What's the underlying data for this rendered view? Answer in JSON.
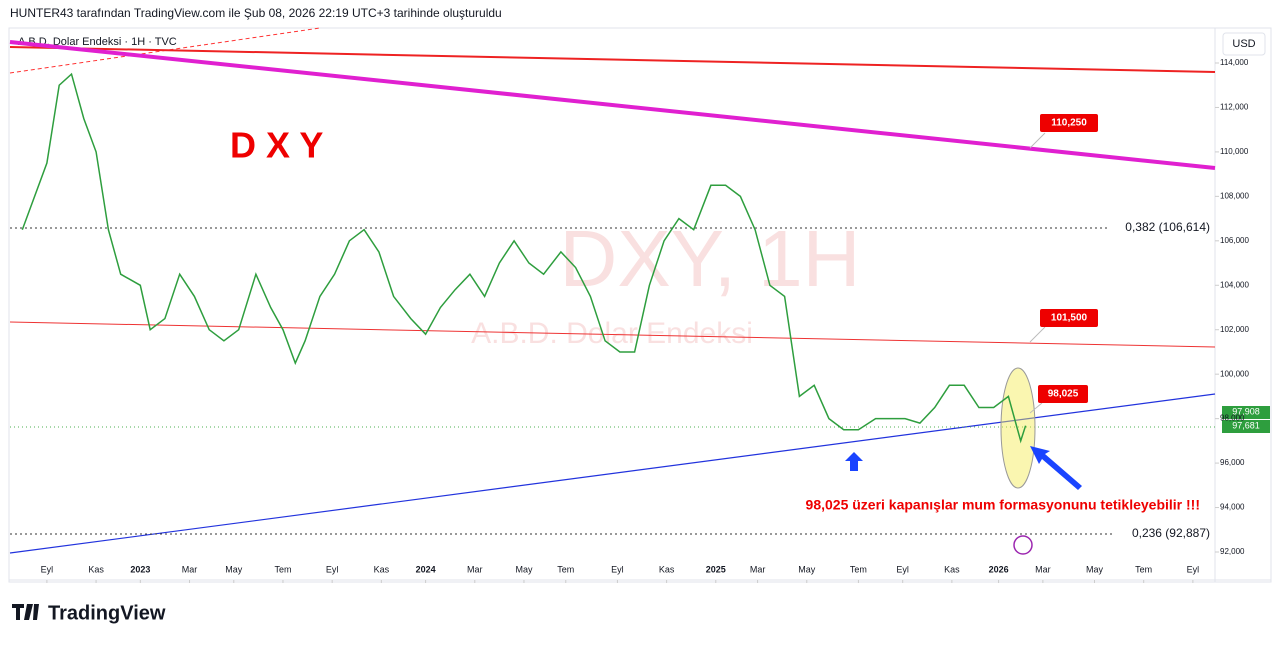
{
  "header": "HUNTER43 tarafından TradingView.com ile Şub 08, 2026 22:19 UTC+3 tarihinde oluşturuldu",
  "chart_data": {
    "type": "line",
    "title": "A.B.D. Dolar Endeksi · 1H · TVC",
    "currency": "USD",
    "annotation_title": "D X Y",
    "watermark": "DXY, 1H",
    "watermark_sub": "A.B.D. Dolar Endeksi",
    "price_labels": [
      "110,250",
      "101,500",
      "98,025"
    ],
    "fib_labels": [
      "0,382 (106,614)",
      "0,236 (92,887)"
    ],
    "last_prices": [
      "97,908",
      "97,681"
    ],
    "note": "98,025 üzeri kapanışlar mum formasyonunu tetikleyebilir !!!",
    "xlim": [
      -1.5,
      47.5
    ],
    "ylim": [
      90.74,
      115.26
    ],
    "xticks": [
      {
        "value": 0,
        "label": "Eyl"
      },
      {
        "value": 2,
        "label": "Kas"
      },
      {
        "value": 3.8,
        "label": "2023"
      },
      {
        "value": 5.8,
        "label": "Mar"
      },
      {
        "value": 7.6,
        "label": "May"
      },
      {
        "value": 9.6,
        "label": "Tem"
      },
      {
        "value": 11.6,
        "label": "Eyl"
      },
      {
        "value": 13.6,
        "label": "Kas"
      },
      {
        "value": 15.4,
        "label": "2024"
      },
      {
        "value": 17.4,
        "label": "Mar"
      },
      {
        "value": 19.4,
        "label": "May"
      },
      {
        "value": 21.1,
        "label": "Tem"
      },
      {
        "value": 23.2,
        "label": "Eyl"
      },
      {
        "value": 25.2,
        "label": "Kas"
      },
      {
        "value": 27.2,
        "label": "2025"
      },
      {
        "value": 28.9,
        "label": "Mar"
      },
      {
        "value": 30.9,
        "label": "May"
      },
      {
        "value": 33,
        "label": "Tem"
      },
      {
        "value": 34.8,
        "label": "Eyl"
      },
      {
        "value": 36.8,
        "label": "Kas"
      },
      {
        "value": 38.7,
        "label": "2026"
      },
      {
        "value": 40.5,
        "label": "Mar"
      },
      {
        "value": 42.6,
        "label": "May"
      },
      {
        "value": 44.6,
        "label": "Tem"
      },
      {
        "value": 46.6,
        "label": "Eyl"
      }
    ],
    "yticks": [
      {
        "value": 92,
        "label": "92,000"
      },
      {
        "value": 94,
        "label": "94,000"
      },
      {
        "value": 96,
        "label": "96,000"
      },
      {
        "value": 98,
        "label": "98,000"
      },
      {
        "value": 100,
        "label": "100,000"
      },
      {
        "value": 102,
        "label": "102,000"
      },
      {
        "value": 104,
        "label": "104,000"
      },
      {
        "value": 106,
        "label": "106,000"
      },
      {
        "value": 108,
        "label": "108,000"
      },
      {
        "value": 110,
        "label": "110,000"
      },
      {
        "value": 112,
        "label": "112,000"
      },
      {
        "value": 114,
        "label": "114,000"
      }
    ],
    "x": [
      -1.0,
      0,
      0.5,
      1.0,
      1.5,
      2.0,
      2.5,
      3.0,
      3.8,
      4.2,
      4.8,
      5.4,
      6.0,
      6.6,
      7.2,
      7.8,
      8.5,
      9.1,
      9.6,
      10.1,
      10.5,
      11.1,
      11.7,
      12.3,
      12.9,
      13.5,
      14.1,
      14.8,
      15.4,
      16.0,
      16.6,
      17.2,
      17.8,
      18.4,
      19.0,
      19.6,
      20.2,
      20.9,
      21.5,
      22.1,
      22.7,
      23.3,
      23.9,
      24.5,
      25.1,
      25.7,
      26.3,
      27.0,
      27.6,
      28.2,
      28.8,
      29.4,
      30.0,
      30.6,
      31.2,
      31.8,
      32.4,
      33.0,
      33.7,
      34.3,
      34.9,
      35.5,
      36.1,
      36.7,
      37.3,
      37.9,
      38.5,
      39.1,
      39.6,
      39.8
    ],
    "series": [
      {
        "name": "DXY",
        "color": "#2e9e3e",
        "values": [
          106.5,
          109.5,
          113,
          113.5,
          111.5,
          110,
          106.5,
          104.5,
          104,
          102,
          102.5,
          104.5,
          103.5,
          102,
          101.5,
          102,
          104.5,
          103,
          102,
          100.5,
          101.5,
          103.5,
          104.5,
          106,
          106.5,
          105.5,
          103.5,
          102.5,
          101.8,
          103,
          103.8,
          104.5,
          103.5,
          105,
          106,
          105,
          104.5,
          105.5,
          104.8,
          103.5,
          101.5,
          101,
          101,
          104,
          106,
          107,
          106.5,
          108.5,
          108.5,
          108,
          106.5,
          104,
          103.5,
          99,
          99.5,
          98,
          97.5,
          97.5,
          98,
          98,
          98,
          97.8,
          98.5,
          99.5,
          99.5,
          98.5,
          98.5,
          99,
          97,
          97.68
        ]
      }
    ]
  },
  "footer": "TradingView"
}
